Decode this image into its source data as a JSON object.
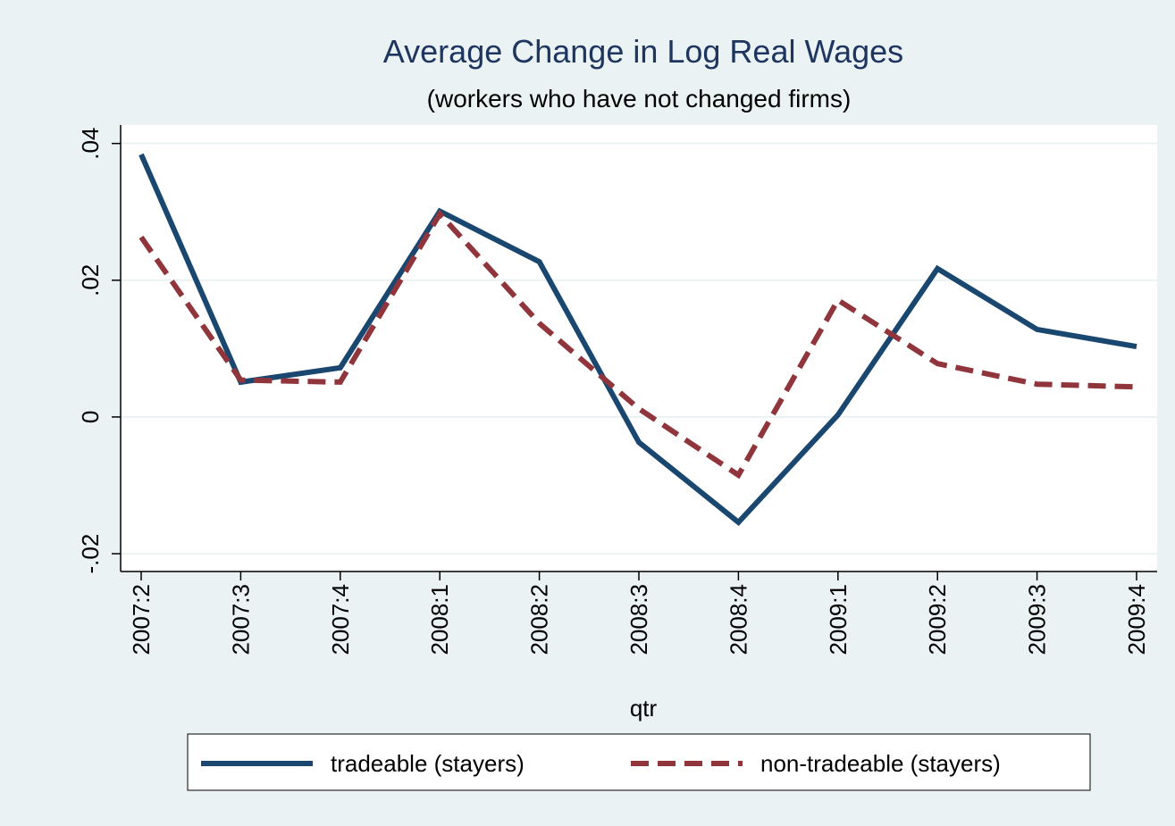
{
  "chart_data": {
    "type": "line",
    "title": "Average Change in Log Real Wages",
    "subtitle": "(workers who have not changed firms)",
    "x_label": "qtr",
    "categories": [
      "2007:2",
      "2007:3",
      "2007:4",
      "2008:1",
      "2008:2",
      "2008:3",
      "2008:4",
      "2009:1",
      "2009:2",
      "2009:3",
      "2009:4"
    ],
    "series": [
      {
        "name": "tradeable (stayers)",
        "color": "#1a476f",
        "dashed": false,
        "values": [
          0.0384,
          0.0051,
          0.0072,
          0.0301,
          0.0227,
          -0.0037,
          -0.0154,
          0.0003,
          0.0217,
          0.0128,
          0.0103
        ]
      },
      {
        "name": "non-tradeable (stayers)",
        "color": "#90353b",
        "dashed": true,
        "values": [
          0.0263,
          0.0054,
          0.0051,
          0.0297,
          0.0137,
          0.0012,
          -0.0085,
          0.0171,
          0.0078,
          0.0048,
          0.0044
        ]
      }
    ],
    "ylim": [
      -0.0226,
      0.0427
    ],
    "yticks": [
      {
        "value": -0.02,
        "label": "-.02"
      },
      0,
      {
        "value": 0.02,
        "label": ".02"
      },
      {
        "value": 0.04,
        "label": ".04"
      }
    ],
    "grid": true
  }
}
